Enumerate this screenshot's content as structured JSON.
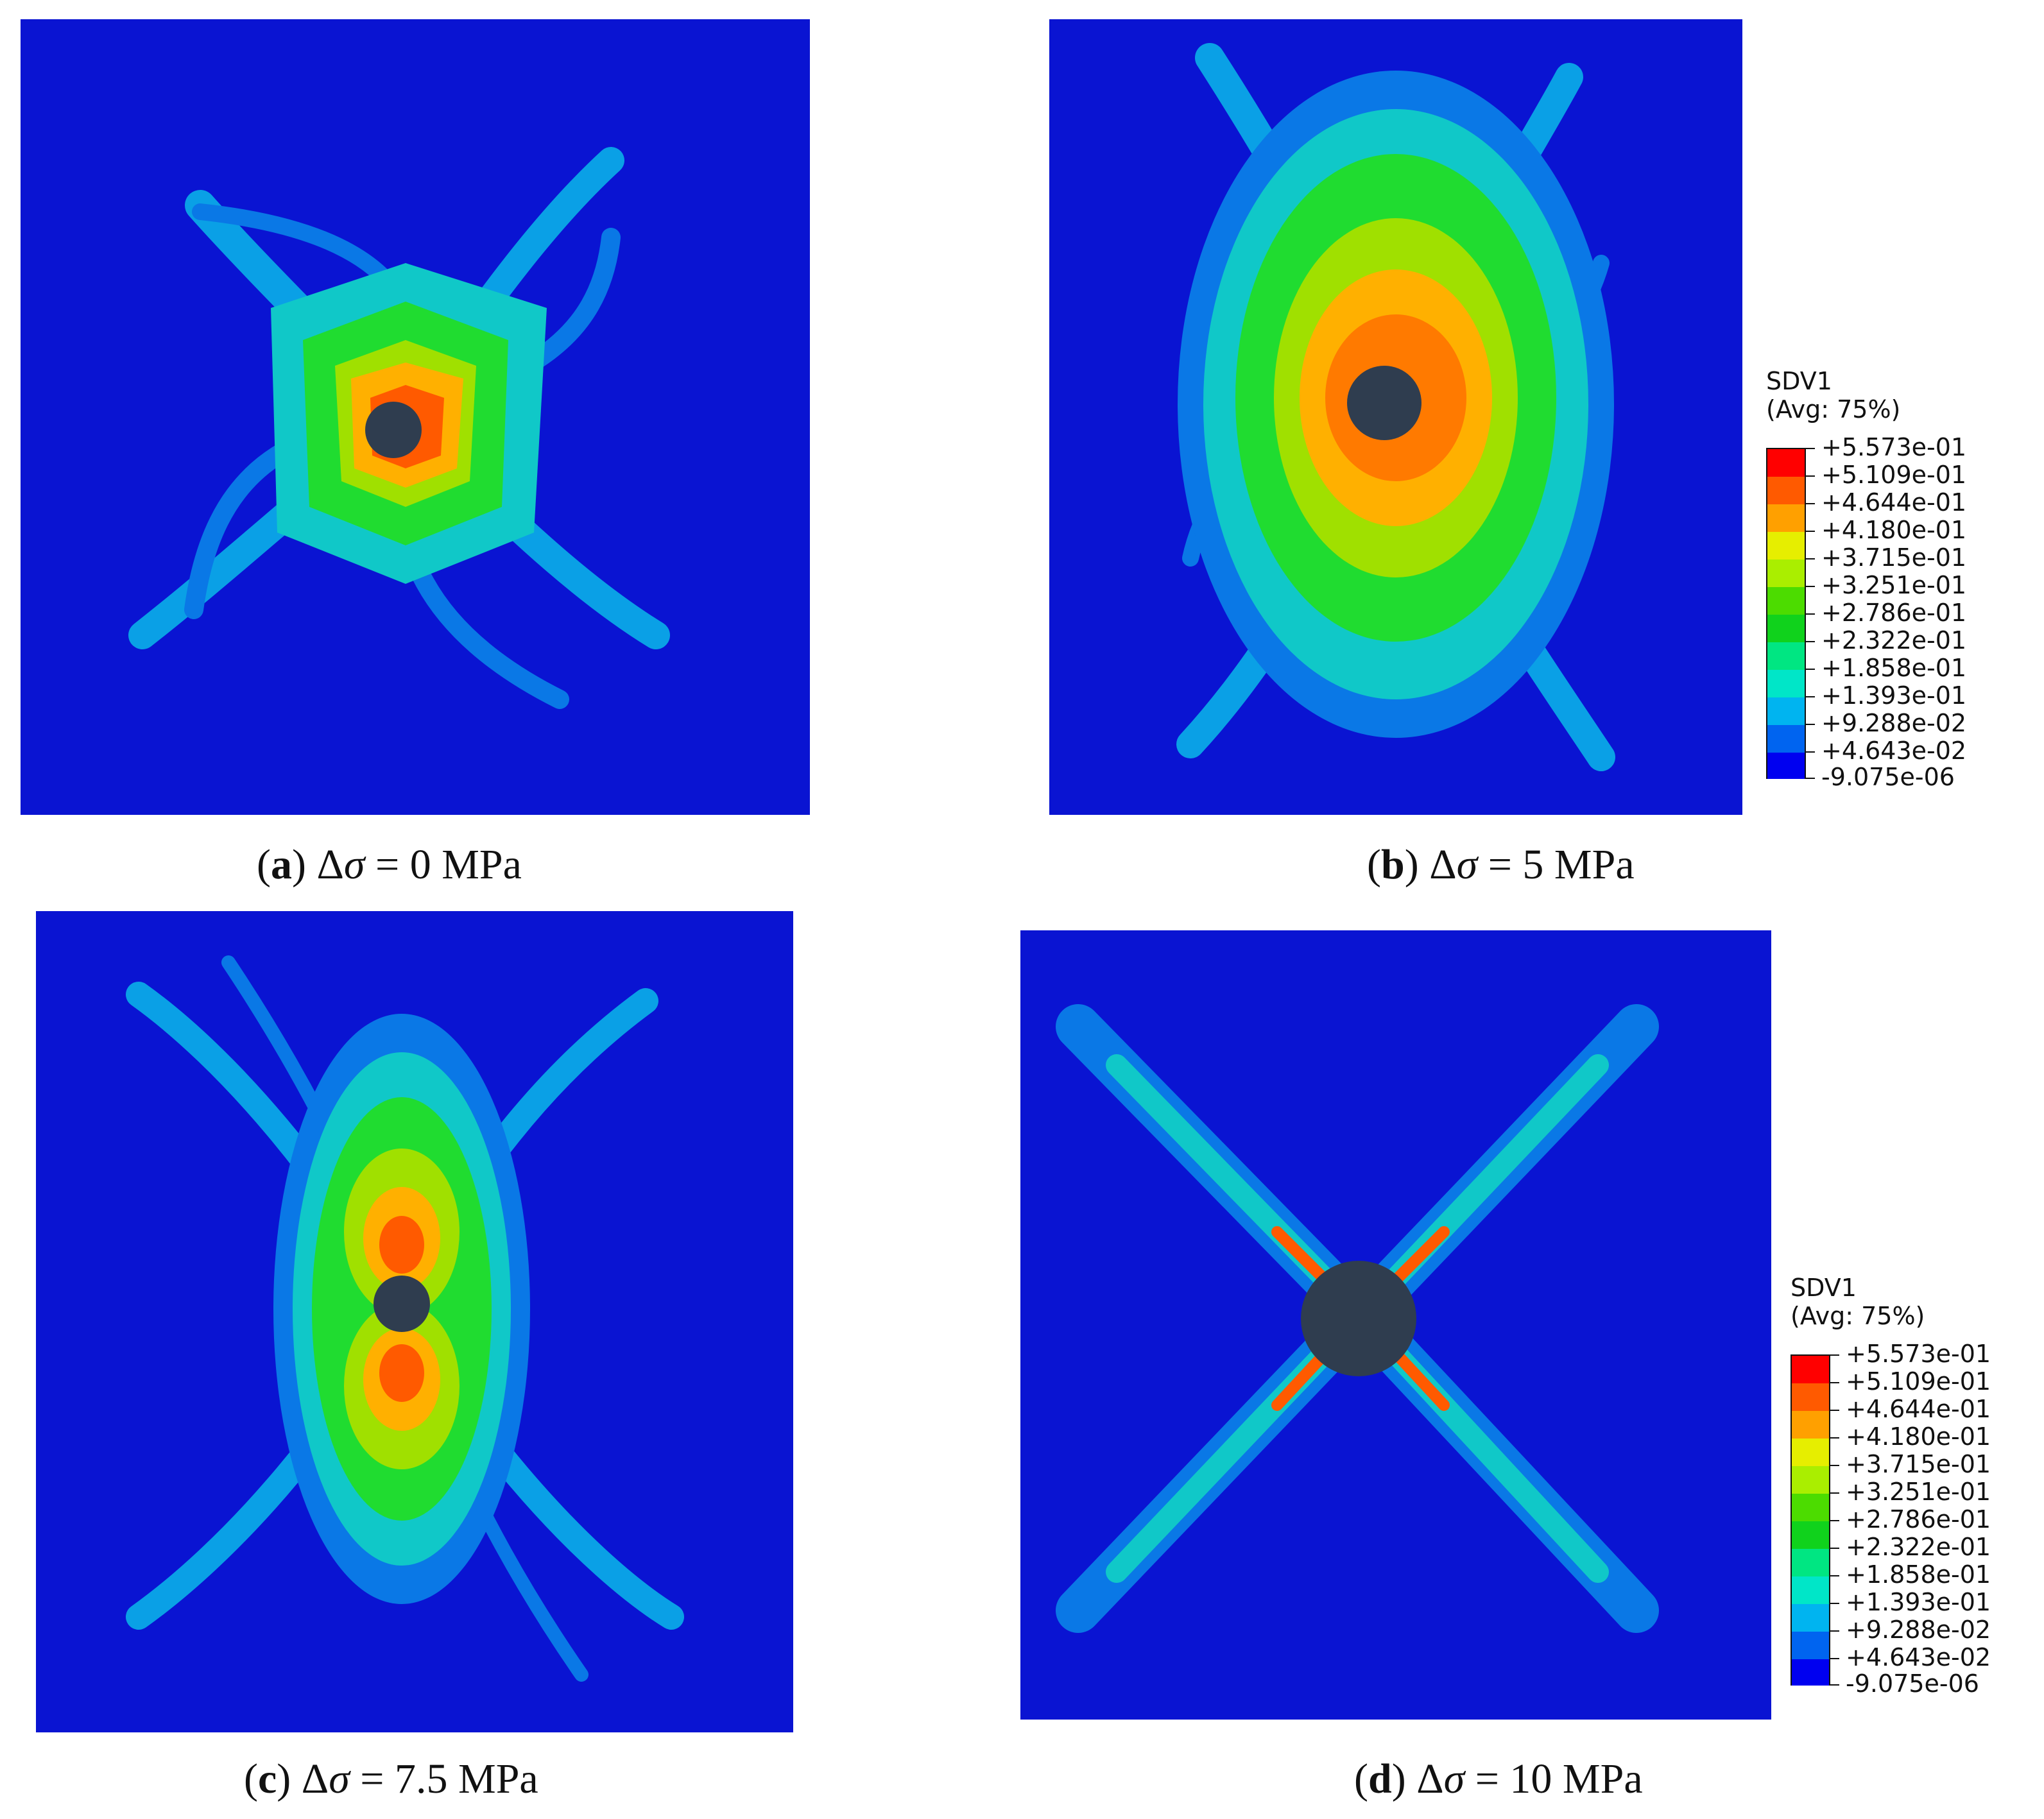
{
  "figure": {
    "legend_title": "SDV1",
    "legend_subtitle": "(Avg: 75%)",
    "legend_values": [
      "+5.573e-01",
      "+5.109e-01",
      "+4.644e-01",
      "+4.180e-01",
      "+3.715e-01",
      "+3.251e-01",
      "+2.786e-01",
      "+2.322e-01",
      "+1.858e-01",
      "+1.393e-01",
      "+9.288e-02",
      "+4.643e-02",
      "-9.075e-06"
    ],
    "legend_colors": [
      "#ff0000",
      "#ff5a00",
      "#ffa000",
      "#e6ee00",
      "#aaee00",
      "#4cdc00",
      "#10d21c",
      "#00e682",
      "#00e6c8",
      "#00b4f0",
      "#0064f0",
      "#0000f0"
    ],
    "background_color": "#0a14d2",
    "hole_color": "#2f3d4f",
    "panels": [
      {
        "letter": "a",
        "label_open": "(",
        "label_close": ")",
        "delta": "Δ",
        "sigma": "σ",
        "value_text": " = 0 MPa"
      },
      {
        "letter": "b",
        "label_open": "(",
        "label_close": ")",
        "delta": "Δ",
        "sigma": "σ",
        "value_text": " = 5 MPa"
      },
      {
        "letter": "c",
        "label_open": "(",
        "label_close": ")",
        "delta": "Δ",
        "sigma": "σ",
        "value_text": " = 7.5 MPa"
      },
      {
        "letter": "d",
        "label_open": "(",
        "label_close": ")",
        "delta": "Δ",
        "sigma": "σ",
        "value_text": " = 10 MPa"
      }
    ]
  }
}
